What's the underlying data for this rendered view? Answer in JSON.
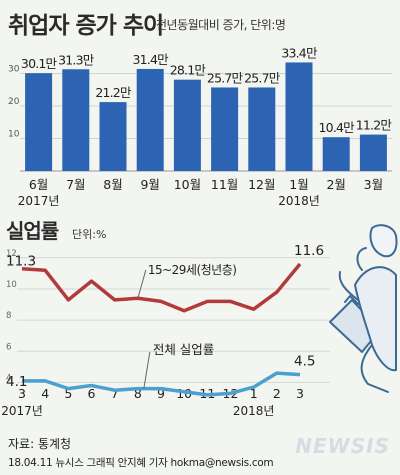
{
  "header": {
    "title": "취업자 증가 추이",
    "subtitle": "전년동월대비 증가, 단위:명"
  },
  "section2": {
    "title": "실업률",
    "unit": "단위:%"
  },
  "footer": {
    "source": "자료: 통계청",
    "credit": "18.04.11  뉴시스 그래픽 안지혜 기자  hokma@newsis.com",
    "logo": "NEWSIS"
  },
  "colors": {
    "bar": "#2c63b3",
    "youth_line": "#b23a3a",
    "total_line": "#4aa0d0",
    "background": "#f3f5f1"
  },
  "illustration": "running-businessman-with-briefcase",
  "chart_data": [
    {
      "type": "bar",
      "categories": [
        "6월",
        "7월",
        "8월",
        "9월",
        "10월",
        "11월",
        "12월",
        "1월",
        "2월",
        "3월"
      ],
      "values": [
        30.1,
        31.3,
        21.2,
        31.4,
        28.1,
        25.7,
        25.7,
        33.4,
        10.4,
        11.2
      ],
      "data_labels": [
        "30.1만",
        "31.3만",
        "21.2만",
        "31.4만",
        "28.1만",
        "25.7만",
        "25.7만",
        "33.4만",
        "10.4만",
        "11.2만"
      ],
      "year_labels": [
        "2017년",
        "2018년"
      ],
      "yticks": [
        10,
        20,
        30
      ],
      "ylim": [
        0,
        40
      ],
      "grid": true
    },
    {
      "type": "line",
      "x": [
        "3",
        "4",
        "5",
        "6",
        "7",
        "8",
        "9",
        "10",
        "11",
        "12",
        "1",
        "2",
        "3"
      ],
      "year_labels": [
        "2017년",
        "2018년"
      ],
      "yticks": [
        4,
        6,
        8,
        10,
        12
      ],
      "ylim": [
        3,
        12.5
      ],
      "grid": true,
      "series": [
        {
          "name": "15~29세(청년층)",
          "values": [
            11.3,
            11.2,
            9.3,
            10.5,
            9.3,
            9.4,
            9.2,
            8.6,
            9.2,
            9.2,
            8.7,
            9.8,
            11.6
          ],
          "start_label": "11.3",
          "end_label": "11.6"
        },
        {
          "name": "전체 실업률",
          "values": [
            4.1,
            4.1,
            3.6,
            3.8,
            3.5,
            3.6,
            3.6,
            3.4,
            3.2,
            3.3,
            3.7,
            4.6,
            4.5
          ],
          "start_label": "4.1",
          "end_label": "4.5"
        }
      ]
    }
  ]
}
